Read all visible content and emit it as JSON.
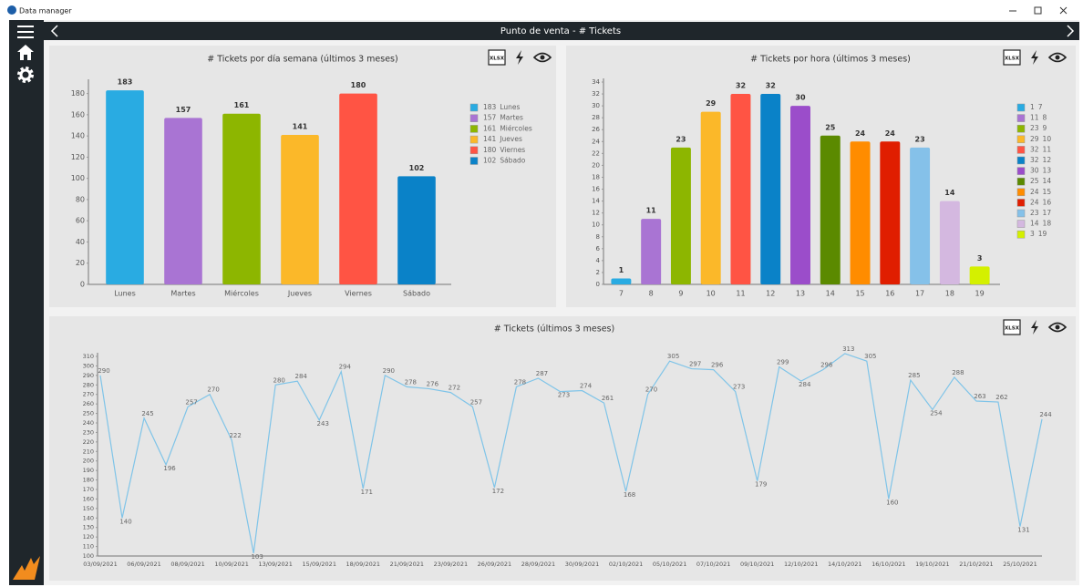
{
  "window": {
    "title": "Data manager"
  },
  "header": {
    "title": "Punto de venta - # Tickets"
  },
  "toolbar": {
    "export": "XLSX"
  },
  "chart_data": [
    {
      "type": "bar",
      "title": "# Tickets por día semana (últimos 3 meses)",
      "categories": [
        "Lunes",
        "Martes",
        "Miércoles",
        "Jueves",
        "Viernes",
        "Sábado"
      ],
      "values": [
        183,
        157,
        161,
        141,
        180,
        102
      ],
      "colors": [
        "#29abe2",
        "#a974d3",
        "#8db600",
        "#fbb829",
        "#ff5444",
        "#0a82c8"
      ],
      "ylim": [
        0,
        190
      ],
      "yticks": [
        0,
        20,
        40,
        60,
        80,
        100,
        120,
        140,
        160,
        180
      ],
      "grid": false,
      "legend": "right"
    },
    {
      "type": "bar",
      "title": "# Tickets por hora (últimos 3 meses)",
      "categories": [
        "7",
        "8",
        "9",
        "10",
        "11",
        "12",
        "13",
        "14",
        "15",
        "16",
        "17",
        "18",
        "19"
      ],
      "values": [
        1,
        11,
        23,
        29,
        32,
        32,
        30,
        25,
        24,
        24,
        23,
        14,
        3
      ],
      "colors": [
        "#29abe2",
        "#a974d3",
        "#8db600",
        "#fbb829",
        "#ff5444",
        "#0a82c8",
        "#9b4dca",
        "#5b8a00",
        "#ff8c00",
        "#e01e00",
        "#85c1e9",
        "#d4b8e0",
        "#d4f000"
      ],
      "ylim": [
        0,
        34
      ],
      "yticks": [
        0,
        2,
        4,
        6,
        8,
        10,
        12,
        14,
        16,
        18,
        20,
        22,
        24,
        26,
        28,
        30,
        32,
        34
      ],
      "grid": false,
      "legend": "right"
    },
    {
      "type": "line",
      "title": "# Tickets (últimos 3 meses)",
      "categories": [
        "03/09/2021",
        null,
        "06/09/2021",
        null,
        "08/09/2021",
        null,
        "10/09/2021",
        null,
        "13/09/2021",
        null,
        "15/09/2021",
        null,
        "18/09/2021",
        null,
        "21/09/2021",
        null,
        "23/09/2021",
        null,
        "26/09/2021",
        null,
        "28/09/2021",
        null,
        "30/09/2021",
        null,
        "02/10/2021",
        null,
        "05/10/2021",
        null,
        "07/10/2021",
        null,
        "09/10/2021",
        null,
        "12/10/2021",
        null,
        "14/10/2021",
        null,
        "16/10/2021",
        null,
        "19/10/2021",
        null,
        "21/10/2021",
        null,
        "25/10/2021",
        null
      ],
      "values": [
        290,
        140,
        245,
        196,
        257,
        270,
        222,
        103,
        280,
        284,
        243,
        294,
        171,
        290,
        278,
        276,
        272,
        257,
        172,
        278,
        287,
        273,
        274,
        261,
        168,
        270,
        305,
        297,
        296,
        273,
        179,
        299,
        284,
        296,
        313,
        305,
        160,
        285,
        254,
        288,
        263,
        262,
        131,
        244
      ],
      "color": "#7fc4e8",
      "ylim": [
        100,
        310
      ],
      "yticks": [
        100,
        110,
        120,
        130,
        140,
        150,
        160,
        170,
        180,
        190,
        200,
        210,
        220,
        230,
        240,
        250,
        260,
        270,
        280,
        290,
        300,
        310
      ],
      "grid": false
    }
  ]
}
